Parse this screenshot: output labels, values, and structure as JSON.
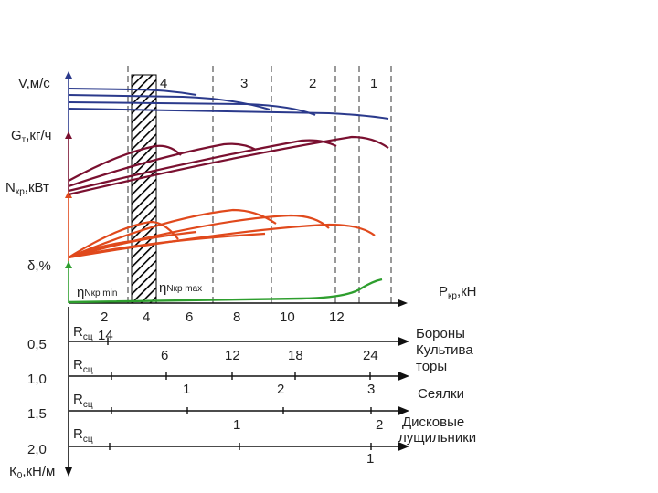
{
  "axes": {
    "v": {
      "main": "V",
      "rest": ",м/с"
    },
    "gt": {
      "main": "G",
      "sub": "т",
      "rest": ",кг/ч"
    },
    "nkr": {
      "main": "N",
      "sub": "кр",
      "rest": ",кВт"
    },
    "delta": {
      "main": "δ,%"
    },
    "pkr": {
      "main": "P",
      "sub": "кр",
      "rest": ",кН"
    },
    "k0": {
      "main": "К",
      "sub": "0",
      "rest": ",кН/м"
    }
  },
  "gears": [
    "4",
    "3",
    "2",
    "1"
  ],
  "efficiency": {
    "min": {
      "eta": "η",
      "sub": "Nкр min"
    },
    "max": {
      "eta": "η",
      "sub": "Nкр max"
    }
  },
  "force_ticks": [
    "2",
    "4",
    "6",
    "8",
    "10",
    "12"
  ],
  "k0_values": [
    "0,5",
    "1,0",
    "1,5",
    "2,0"
  ],
  "rsc_label": {
    "main": "R",
    "sub": "сц"
  },
  "implements": [
    {
      "name": "Бороны",
      "ticks": [
        "14"
      ]
    },
    {
      "name": "Культива торы",
      "line1": "Культива",
      "line2": "торы",
      "ticks": [
        "6",
        "12",
        "18",
        "24"
      ]
    },
    {
      "name": "Сеялки",
      "ticks": [
        "1",
        "2",
        "3"
      ]
    },
    {
      "name": "Дисковые лущильники",
      "line1": "Дисковые",
      "line2": "лущильники",
      "ticks": [
        "1",
        "2"
      ]
    }
  ],
  "bottom_tick": "1",
  "colors": {
    "speed": "#2b3a8c",
    "fuel": "#7a1030",
    "power": "#e0491c",
    "slip": "#2e9e2e",
    "axis": "#111111",
    "hatch": "#000000"
  }
}
